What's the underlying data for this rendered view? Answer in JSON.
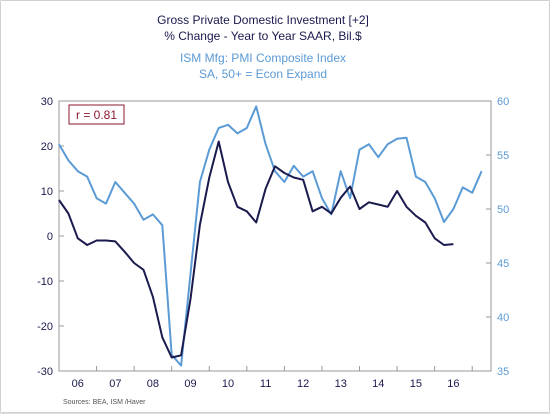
{
  "chart_data": {
    "type": "line",
    "title_line1": "Gross Private Domestic Investment [+2]",
    "title_line2": "% Change - Year to Year   SAAR, Bil.$",
    "subtitle_line1": "ISM Mfg: PMI Composite Index",
    "subtitle_line2": "SA, 50+ = Econ Expand",
    "annotation": "r = 0.81",
    "source": "Sources:  BEA, ISM /Haver",
    "x_axis": {
      "tick_labels": [
        "06",
        "07",
        "08",
        "09",
        "10",
        "11",
        "12",
        "13",
        "14",
        "15",
        "16"
      ],
      "range": [
        2005.0,
        2016.5
      ]
    },
    "y_left": {
      "range": [
        -30,
        30
      ],
      "ticks": [
        -30,
        -20,
        -10,
        0,
        10,
        20,
        30
      ]
    },
    "y_right": {
      "range": [
        35,
        60
      ],
      "ticks": [
        35,
        40,
        45,
        50,
        55,
        60
      ]
    },
    "colors": {
      "investment": "#1a1a4e",
      "pmi": "#5b9bd5",
      "annotation": "#8b1a2e"
    },
    "series": [
      {
        "axis": "left",
        "points": [
          [
            2005.0,
            8.0
          ],
          [
            2005.25,
            5.0
          ],
          [
            2005.5,
            -0.5
          ],
          [
            2005.75,
            -2.0
          ],
          [
            2006.0,
            -1.0
          ],
          [
            2006.25,
            -1.0
          ],
          [
            2006.5,
            -1.2
          ],
          [
            2006.75,
            -3.5
          ],
          [
            2007.0,
            -6.0
          ],
          [
            2007.25,
            -7.5
          ],
          [
            2007.5,
            -13.5
          ],
          [
            2007.75,
            -22.5
          ],
          [
            2008.0,
            -27.0
          ],
          [
            2008.25,
            -26.5
          ],
          [
            2008.5,
            -14.0
          ],
          [
            2008.75,
            2.5
          ],
          [
            2009.0,
            13.0
          ],
          [
            2009.25,
            21.0
          ],
          [
            2009.5,
            12.0
          ],
          [
            2009.75,
            6.5
          ],
          [
            2010.0,
            5.5
          ],
          [
            2010.25,
            3.0
          ],
          [
            2010.5,
            10.5
          ],
          [
            2010.75,
            15.5
          ],
          [
            2011.0,
            14.0
          ],
          [
            2011.25,
            13.0
          ],
          [
            2011.5,
            12.5
          ],
          [
            2011.75,
            5.5
          ],
          [
            2012.0,
            6.5
          ],
          [
            2012.25,
            5.0
          ],
          [
            2012.5,
            8.5
          ],
          [
            2012.75,
            11.0
          ],
          [
            2013.0,
            6.0
          ],
          [
            2013.25,
            7.5
          ],
          [
            2013.5,
            7.0
          ],
          [
            2013.75,
            6.5
          ],
          [
            2014.0,
            10.0
          ],
          [
            2014.25,
            6.5
          ],
          [
            2014.5,
            4.5
          ],
          [
            2014.75,
            3.0
          ],
          [
            2015.0,
            -0.5
          ],
          [
            2015.25,
            -2.0
          ],
          [
            2015.5,
            -1.8
          ]
        ]
      },
      {
        "axis": "right",
        "points": [
          [
            2005.0,
            56.0
          ],
          [
            2005.25,
            54.5
          ],
          [
            2005.5,
            53.5
          ],
          [
            2005.75,
            53.0
          ],
          [
            2006.0,
            51.0
          ],
          [
            2006.25,
            50.5
          ],
          [
            2006.5,
            52.5
          ],
          [
            2006.75,
            51.5
          ],
          [
            2007.0,
            50.5
          ],
          [
            2007.25,
            49.0
          ],
          [
            2007.5,
            49.5
          ],
          [
            2007.75,
            48.5
          ],
          [
            2008.0,
            36.5
          ],
          [
            2008.25,
            35.5
          ],
          [
            2008.5,
            44.0
          ],
          [
            2008.75,
            52.5
          ],
          [
            2009.0,
            55.5
          ],
          [
            2009.25,
            57.5
          ],
          [
            2009.5,
            57.8
          ],
          [
            2009.75,
            57.0
          ],
          [
            2010.0,
            57.5
          ],
          [
            2010.25,
            59.5
          ],
          [
            2010.5,
            56.0
          ],
          [
            2010.75,
            53.5
          ],
          [
            2011.0,
            52.5
          ],
          [
            2011.25,
            54.0
          ],
          [
            2011.5,
            53.0
          ],
          [
            2011.75,
            53.5
          ],
          [
            2012.0,
            51.0
          ],
          [
            2012.25,
            49.5
          ],
          [
            2012.5,
            53.5
          ],
          [
            2012.75,
            51.0
          ],
          [
            2013.0,
            55.5
          ],
          [
            2013.25,
            56.0
          ],
          [
            2013.5,
            54.8
          ],
          [
            2013.75,
            56.0
          ],
          [
            2014.0,
            56.5
          ],
          [
            2014.25,
            56.6
          ],
          [
            2014.5,
            53.0
          ],
          [
            2014.75,
            52.5
          ],
          [
            2015.0,
            51.0
          ],
          [
            2015.25,
            48.8
          ],
          [
            2015.5,
            50.0
          ],
          [
            2015.75,
            52.0
          ],
          [
            2016.0,
            51.5
          ],
          [
            2016.25,
            53.5
          ]
        ]
      }
    ]
  }
}
